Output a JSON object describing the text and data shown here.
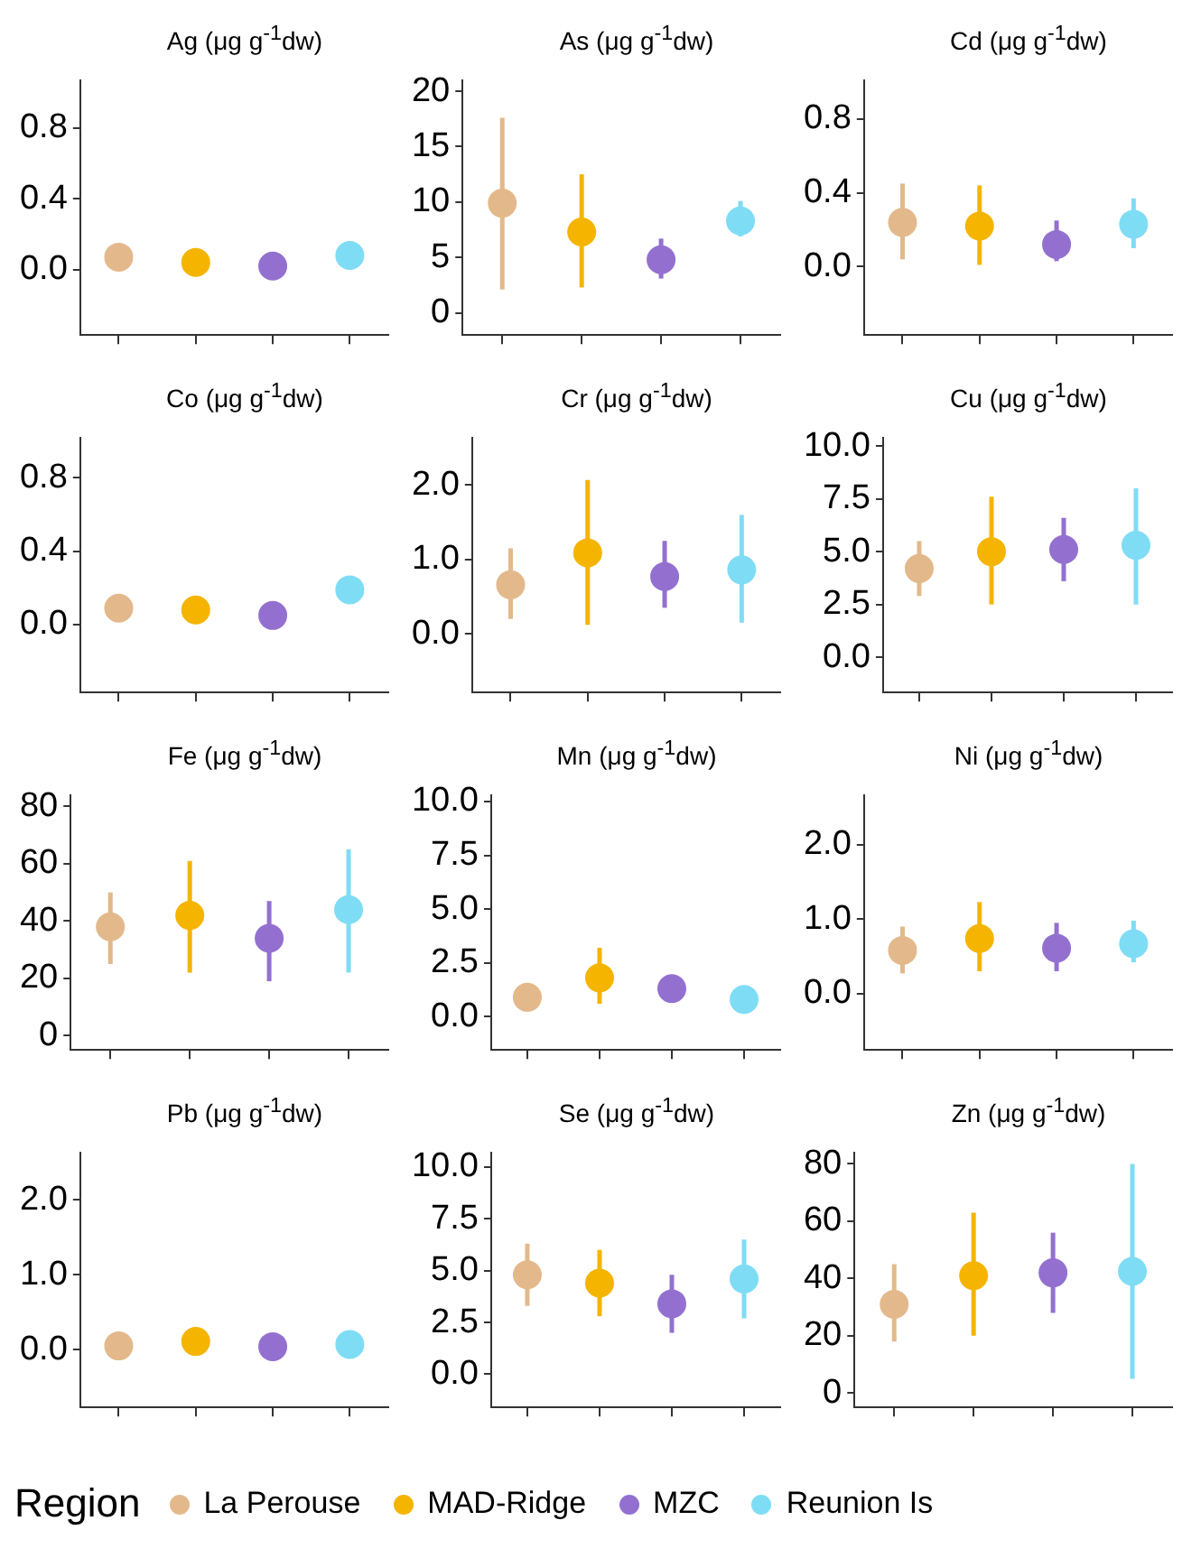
{
  "chart_data": [
    {
      "type": "scatter",
      "title": "Ag (μg g$^{-1}$dw)",
      "categories": [
        null,
        null,
        null,
        null
      ],
      "tick_labels": "y",
      "marker": "circle",
      "legend": "bottom",
      "legend_title": "Region",
      "ylim": [
        -0.37,
        1.07
      ],
      "yticks": [
        {
          "value": 0,
          "label": "0.0"
        },
        {
          "value": 0.4,
          "label": "0.4"
        },
        {
          "value": 0.8,
          "label": "0.8"
        }
      ],
      "series": [
        {
          "name": "La Perouse",
          "color": "#e3b98b",
          "values": [
            0.07,
            null,
            null,
            null
          ]
        },
        {
          "name": "MAD-Ridge",
          "color": "#f5b400",
          "values": [
            null,
            0.04,
            null,
            null
          ]
        },
        {
          "name": "MZC",
          "color": "#9370d0",
          "values": [
            null,
            null,
            0.02,
            null
          ]
        },
        {
          "name": "Reunion Is",
          "color": "#7fdcf5",
          "values": [
            null,
            null,
            null,
            0.08
          ],
          "errors": [
            null,
            null,
            null,
            [
              0.0,
              0.16
            ]
          ]
        }
      ]
    },
    {
      "type": "scatter",
      "title": "As (μg g$^{-1}$dw)",
      "categories": [
        null,
        null,
        null,
        null
      ],
      "tick_labels": "y",
      "marker": "circle",
      "ylim": [
        -2,
        21
      ],
      "yticks": [
        0,
        5,
        10,
        15,
        20
      ],
      "series": [
        {
          "color": "#e3b98b",
          "values": [
            9.9,
            null,
            null,
            null
          ],
          "errors": [
            [
              2.1,
              17.6
            ],
            null,
            null,
            null
          ]
        },
        {
          "color": "#f5b400",
          "values": [
            null,
            7.3,
            null,
            null
          ],
          "errors": [
            null,
            [
              2.3,
              12.5
            ],
            null,
            null
          ]
        },
        {
          "color": "#9370d0",
          "values": [
            null,
            null,
            4.8,
            null
          ],
          "errors": [
            null,
            null,
            [
              3.1,
              6.7
            ],
            null
          ]
        },
        {
          "color": "#7fdcf5",
          "values": [
            null,
            null,
            null,
            8.3
          ],
          "errors": [
            null,
            null,
            null,
            [
              6.9,
              10.1
            ]
          ]
        }
      ]
    },
    {
      "type": "scatter",
      "title": "Cd (μg g$^{-1}$dw)",
      "categories": [
        null,
        null,
        null,
        null
      ],
      "tick_labels": "y",
      "marker": "circle",
      "ylim": [
        -0.37,
        1.01
      ],
      "yticks": [
        {
          "value": 0,
          "label": "0.0"
        },
        {
          "value": 0.4,
          "label": "0.4"
        },
        {
          "value": 0.8,
          "label": "0.8"
        }
      ],
      "series": [
        {
          "color": "#e3b98b",
          "values": [
            0.24,
            null,
            null,
            null
          ],
          "errors": [
            [
              0.04,
              0.45
            ],
            null,
            null,
            null
          ]
        },
        {
          "color": "#f5b400",
          "values": [
            null,
            0.22,
            null,
            null
          ],
          "errors": [
            null,
            [
              0.01,
              0.44
            ],
            null,
            null
          ]
        },
        {
          "color": "#9370d0",
          "values": [
            null,
            null,
            0.12,
            null
          ],
          "errors": [
            null,
            null,
            [
              0.03,
              0.25
            ],
            null
          ]
        },
        {
          "color": "#7fdcf5",
          "values": [
            null,
            null,
            null,
            0.23
          ],
          "errors": [
            null,
            null,
            null,
            [
              0.1,
              0.37
            ]
          ]
        }
      ]
    },
    {
      "type": "scatter",
      "title": "Co (μg g$^{-1}$dw)",
      "categories": [
        null,
        null,
        null,
        null
      ],
      "tick_labels": "y",
      "marker": "circle",
      "ylim": [
        -0.37,
        1.02
      ],
      "yticks": [
        {
          "value": 0,
          "label": "0.0"
        },
        {
          "value": 0.4,
          "label": "0.4"
        },
        {
          "value": 0.8,
          "label": "0.8"
        }
      ],
      "series": [
        {
          "color": "#e3b98b",
          "values": [
            0.09,
            null,
            null,
            null
          ]
        },
        {
          "color": "#f5b400",
          "values": [
            null,
            0.08,
            null,
            null
          ]
        },
        {
          "color": "#9370d0",
          "values": [
            null,
            null,
            0.05,
            null
          ]
        },
        {
          "color": "#7fdcf5",
          "values": [
            null,
            null,
            null,
            0.19
          ],
          "errors": [
            null,
            null,
            null,
            [
              0.14,
              0.25
            ]
          ]
        }
      ]
    },
    {
      "type": "scatter",
      "title": "Cr (μg g$^{-1}$dw)",
      "categories": [
        null,
        null,
        null,
        null
      ],
      "tick_labels": "y",
      "marker": "circle",
      "ylim": [
        -0.79,
        2.64
      ],
      "yticks": [
        {
          "value": 0,
          "label": "0.0"
        },
        {
          "value": 1,
          "label": "1.0"
        },
        {
          "value": 2,
          "label": "2.0"
        }
      ],
      "series": [
        {
          "color": "#e3b98b",
          "values": [
            0.66,
            null,
            null,
            null
          ],
          "errors": [
            [
              0.2,
              1.15
            ],
            null,
            null,
            null
          ]
        },
        {
          "color": "#f5b400",
          "values": [
            null,
            1.09,
            null,
            null
          ],
          "errors": [
            null,
            [
              0.12,
              2.07
            ],
            null,
            null
          ]
        },
        {
          "color": "#9370d0",
          "values": [
            null,
            null,
            0.77,
            null
          ],
          "errors": [
            null,
            null,
            [
              0.35,
              1.25
            ],
            null
          ]
        },
        {
          "color": "#7fdcf5",
          "values": [
            null,
            null,
            null,
            0.86
          ],
          "errors": [
            null,
            null,
            null,
            [
              0.15,
              1.6
            ]
          ]
        }
      ]
    },
    {
      "type": "scatter",
      "title": "Cu (μg g$^{-1}$dw)",
      "categories": [
        null,
        null,
        null,
        null
      ],
      "tick_labels": "y",
      "marker": "circle",
      "ylim": [
        -1.67,
        10.4
      ],
      "yticks": [
        {
          "value": 0,
          "label": "0.0"
        },
        {
          "value": 2.5,
          "label": "2.5"
        },
        {
          "value": 5,
          "label": "5.0"
        },
        {
          "value": 7.5,
          "label": "7.5"
        },
        {
          "value": 10,
          "label": "10.0"
        }
      ],
      "series": [
        {
          "color": "#e3b98b",
          "values": [
            4.2,
            null,
            null,
            null
          ],
          "errors": [
            [
              2.9,
              5.5
            ],
            null,
            null,
            null
          ]
        },
        {
          "color": "#f5b400",
          "values": [
            null,
            5.0,
            null,
            null
          ],
          "errors": [
            null,
            [
              2.5,
              7.6
            ],
            null,
            null
          ]
        },
        {
          "color": "#9370d0",
          "values": [
            null,
            null,
            5.1,
            null
          ],
          "errors": [
            null,
            null,
            [
              3.6,
              6.6
            ],
            null
          ]
        },
        {
          "color": "#7fdcf5",
          "values": [
            null,
            null,
            null,
            5.3
          ],
          "errors": [
            null,
            null,
            null,
            [
              2.5,
              8.0
            ]
          ]
        }
      ]
    },
    {
      "type": "scatter",
      "title": "Fe (μg g$^{-1}$dw)",
      "categories": [
        null,
        null,
        null,
        null
      ],
      "tick_labels": "y",
      "marker": "circle",
      "ylim": [
        -5,
        84
      ],
      "yticks": [
        0,
        20,
        40,
        60,
        80
      ],
      "series": [
        {
          "color": "#e3b98b",
          "values": [
            38,
            null,
            null,
            null
          ],
          "errors": [
            [
              25,
              50
            ],
            null,
            null,
            null
          ]
        },
        {
          "color": "#f5b400",
          "values": [
            null,
            42,
            null,
            null
          ],
          "errors": [
            null,
            [
              22,
              61
            ],
            null,
            null
          ]
        },
        {
          "color": "#9370d0",
          "values": [
            null,
            null,
            34,
            null
          ],
          "errors": [
            null,
            null,
            [
              19,
              47
            ],
            null
          ]
        },
        {
          "color": "#7fdcf5",
          "values": [
            null,
            null,
            null,
            44
          ],
          "errors": [
            null,
            null,
            null,
            [
              22,
              65
            ]
          ]
        }
      ]
    },
    {
      "type": "scatter",
      "title": "Mn (μg g$^{-1}$dw)",
      "categories": [
        null,
        null,
        null,
        null
      ],
      "tick_labels": "y",
      "marker": "circle",
      "ylim": [
        -1.55,
        10.3
      ],
      "yticks": [
        {
          "value": 0,
          "label": "0.0"
        },
        {
          "value": 2.5,
          "label": "2.5"
        },
        {
          "value": 5,
          "label": "5.0"
        },
        {
          "value": 7.5,
          "label": "7.5"
        },
        {
          "value": 10,
          "label": "10.0"
        }
      ],
      "series": [
        {
          "color": "#e3b98b",
          "values": [
            0.9,
            null,
            null,
            null
          ]
        },
        {
          "color": "#f5b400",
          "values": [
            null,
            1.8,
            null,
            null
          ],
          "errors": [
            null,
            [
              0.6,
              3.2
            ],
            null,
            null
          ]
        },
        {
          "color": "#9370d0",
          "values": [
            null,
            null,
            1.3,
            null
          ]
        },
        {
          "color": "#7fdcf5",
          "values": [
            null,
            null,
            null,
            0.8
          ]
        }
      ]
    },
    {
      "type": "scatter",
      "title": "Ni (μg g$^{-1}$dw)",
      "categories": [
        null,
        null,
        null,
        null
      ],
      "tick_labels": "y",
      "marker": "circle",
      "ylim": [
        -0.76,
        2.67
      ],
      "yticks": [
        {
          "value": 0,
          "label": "0.0"
        },
        {
          "value": 1,
          "label": "1.0"
        },
        {
          "value": 2,
          "label": "2.0"
        }
      ],
      "series": [
        {
          "color": "#e3b98b",
          "values": [
            0.58,
            null,
            null,
            null
          ],
          "errors": [
            [
              0.27,
              0.9
            ],
            null,
            null,
            null
          ]
        },
        {
          "color": "#f5b400",
          "values": [
            null,
            0.74,
            null,
            null
          ],
          "errors": [
            null,
            [
              0.3,
              1.23
            ],
            null,
            null
          ]
        },
        {
          "color": "#9370d0",
          "values": [
            null,
            null,
            0.61,
            null
          ],
          "errors": [
            null,
            null,
            [
              0.3,
              0.95
            ],
            null
          ]
        },
        {
          "color": "#7fdcf5",
          "values": [
            null,
            null,
            null,
            0.67
          ],
          "errors": [
            null,
            null,
            null,
            [
              0.42,
              0.98
            ]
          ]
        }
      ]
    },
    {
      "type": "scatter",
      "title": "Pb (μg g$^{-1}$dw)",
      "categories": [
        null,
        null,
        null,
        null
      ],
      "tick_labels": "y",
      "marker": "circle",
      "ylim": [
        -0.77,
        2.63
      ],
      "yticks": [
        {
          "value": 0,
          "label": "0.0"
        },
        {
          "value": 1,
          "label": "1.0"
        },
        {
          "value": 2,
          "label": "2.0"
        }
      ],
      "series": [
        {
          "color": "#e3b98b",
          "values": [
            0.05,
            null,
            null,
            null
          ]
        },
        {
          "color": "#f5b400",
          "values": [
            null,
            0.11,
            null,
            null
          ]
        },
        {
          "color": "#9370d0",
          "values": [
            null,
            null,
            0.04,
            null
          ]
        },
        {
          "color": "#7fdcf5",
          "values": [
            null,
            null,
            null,
            0.07
          ]
        }
      ]
    },
    {
      "type": "scatter",
      "title": "Se (μg g$^{-1}$dw)",
      "categories": [
        null,
        null,
        null,
        null
      ],
      "tick_labels": "y",
      "marker": "circle",
      "ylim": [
        -1.6,
        10.7
      ],
      "yticks": [
        {
          "value": 0,
          "label": "0.0"
        },
        {
          "value": 2.5,
          "label": "2.5"
        },
        {
          "value": 5,
          "label": "5.0"
        },
        {
          "value": 7.5,
          "label": "7.5"
        },
        {
          "value": 10,
          "label": "10.0"
        }
      ],
      "series": [
        {
          "color": "#e3b98b",
          "values": [
            4.8,
            null,
            null,
            null
          ],
          "errors": [
            [
              3.3,
              6.3
            ],
            null,
            null,
            null
          ]
        },
        {
          "color": "#f5b400",
          "values": [
            null,
            4.4,
            null,
            null
          ],
          "errors": [
            null,
            [
              2.8,
              6.0
            ],
            null,
            null
          ]
        },
        {
          "color": "#9370d0",
          "values": [
            null,
            null,
            3.4,
            null
          ],
          "errors": [
            null,
            null,
            [
              2.0,
              4.8
            ],
            null
          ]
        },
        {
          "color": "#7fdcf5",
          "values": [
            null,
            null,
            null,
            4.6
          ],
          "errors": [
            null,
            null,
            null,
            [
              2.7,
              6.5
            ]
          ]
        }
      ]
    },
    {
      "type": "scatter",
      "title": "Zn (μg g$^{-1}$dw)",
      "categories": [
        null,
        null,
        null,
        null
      ],
      "tick_labels": "y",
      "marker": "circle",
      "ylim": [
        -5,
        84
      ],
      "yticks": [
        0,
        20,
        40,
        60,
        80
      ],
      "series": [
        {
          "color": "#e3b98b",
          "values": [
            31,
            null,
            null,
            null
          ],
          "errors": [
            [
              18,
              45
            ],
            null,
            null,
            null
          ]
        },
        {
          "color": "#f5b400",
          "values": [
            null,
            41,
            null,
            null
          ],
          "errors": [
            null,
            [
              20,
              63
            ],
            null,
            null
          ]
        },
        {
          "color": "#9370d0",
          "values": [
            null,
            null,
            42,
            null
          ],
          "errors": [
            null,
            null,
            [
              28,
              56
            ],
            null
          ]
        },
        {
          "color": "#7fdcf5",
          "values": [
            null,
            null,
            null,
            42.5
          ],
          "errors": [
            null,
            null,
            null,
            [
              5,
              80
            ]
          ]
        }
      ]
    }
  ]
}
